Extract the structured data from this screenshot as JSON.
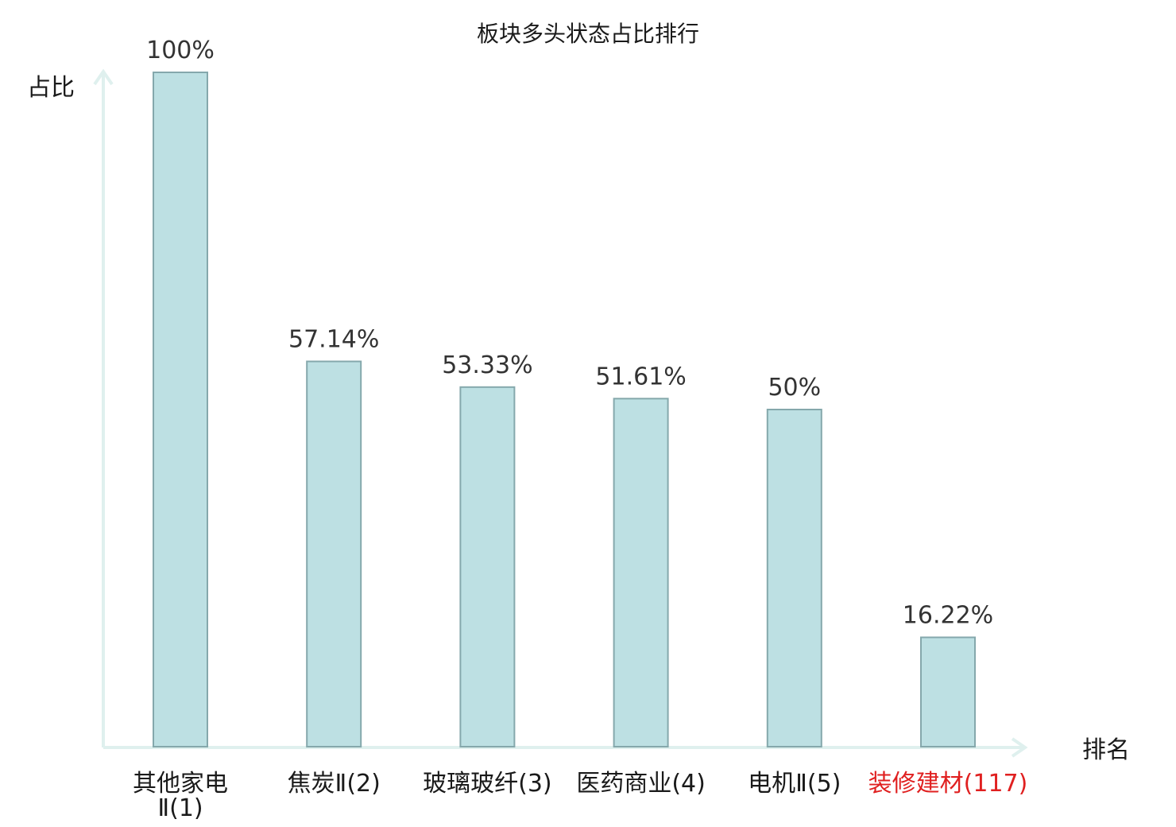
{
  "chart_data": {
    "type": "bar",
    "title": "板块多头状态占比排行",
    "xlabel": "排名",
    "ylabel": "占比",
    "ylim": [
      0,
      100
    ],
    "grid": false,
    "categories": [
      {
        "line1": "其他家电",
        "line2": "Ⅱ(1)",
        "highlight": false
      },
      {
        "line1": "焦炭Ⅱ(2)",
        "line2": "",
        "highlight": false
      },
      {
        "line1": "玻璃玻纤(3)",
        "line2": "",
        "highlight": false
      },
      {
        "line1": "医药商业(4)",
        "line2": "",
        "highlight": false
      },
      {
        "line1": "电机Ⅱ(5)",
        "line2": "",
        "highlight": false
      },
      {
        "line1": "装修建材(117)",
        "line2": "",
        "highlight": true
      }
    ],
    "values": [
      100,
      57.14,
      53.33,
      51.61,
      50,
      16.22
    ],
    "value_labels": [
      "100%",
      "57.14%",
      "53.33%",
      "51.61%",
      "50%",
      "16.22%"
    ]
  },
  "colors": {
    "bar_fill": "#bde0e3",
    "bar_stroke": "#85a8ac",
    "axis": "#dff0ee",
    "text": "#1a1a1a",
    "value_text": "#333333",
    "highlight": "#e02020"
  }
}
